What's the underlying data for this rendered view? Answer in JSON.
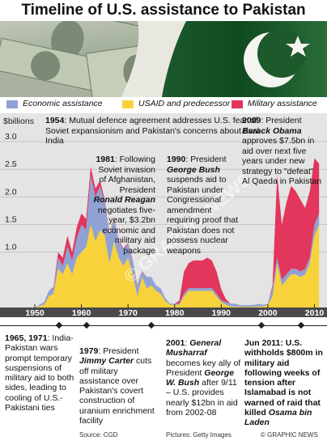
{
  "title": "Timeline of U.S. assistance to Pakistan",
  "legend": [
    {
      "label": "Economic assistance",
      "color": "#8fa2d3"
    },
    {
      "label": "USAID and predecessor",
      "color": "#f7d23a"
    },
    {
      "label": "Military assistance",
      "color": "#e2365c"
    }
  ],
  "chart_data": {
    "type": "area",
    "ylabel": "$billions",
    "ylim": [
      0,
      3.0
    ],
    "yticks": [
      "3.0",
      "2.5",
      "2.0",
      "1.5",
      "1.0"
    ],
    "xlim": [
      1946,
      2012
    ],
    "xticks": [
      "1950",
      "1960",
      "1970",
      "1980",
      "1990",
      "2000",
      "2010"
    ],
    "series": [
      {
        "name": "USAID and predecessor",
        "points": [
          [
            1948,
            0
          ],
          [
            1950,
            0
          ],
          [
            1952,
            0.05
          ],
          [
            1953,
            0.2
          ],
          [
            1954,
            0.25
          ],
          [
            1955,
            0.7
          ],
          [
            1956,
            0.6
          ],
          [
            1957,
            0.8
          ],
          [
            1958,
            0.6
          ],
          [
            1959,
            0.9
          ],
          [
            1960,
            1.0
          ],
          [
            1961,
            1.1
          ],
          [
            1962,
            1.5
          ],
          [
            1963,
            1.2
          ],
          [
            1964,
            1.4
          ],
          [
            1965,
            1.3
          ],
          [
            1966,
            0.8
          ],
          [
            1967,
            1.2
          ],
          [
            1968,
            0.9
          ],
          [
            1969,
            0.75
          ],
          [
            1970,
            0.9
          ],
          [
            1971,
            0.6
          ],
          [
            1972,
            0.2
          ],
          [
            1973,
            0.55
          ],
          [
            1974,
            0.35
          ],
          [
            1975,
            0.4
          ],
          [
            1976,
            0.3
          ],
          [
            1977,
            0.25
          ],
          [
            1978,
            0.12
          ],
          [
            1979,
            0.05
          ],
          [
            1980,
            0.05
          ],
          [
            1981,
            0.05
          ],
          [
            1982,
            0.2
          ],
          [
            1983,
            0.3
          ],
          [
            1984,
            0.3
          ],
          [
            1985,
            0.3
          ],
          [
            1986,
            0.3
          ],
          [
            1987,
            0.3
          ],
          [
            1988,
            0.3
          ],
          [
            1989,
            0.2
          ],
          [
            1990,
            0.1
          ],
          [
            1991,
            0.05
          ],
          [
            1992,
            0.02
          ],
          [
            1995,
            0.01
          ],
          [
            1999,
            0.02
          ],
          [
            2000,
            0.05
          ],
          [
            2001,
            0.2
          ],
          [
            2002,
            0.8
          ],
          [
            2003,
            0.4
          ],
          [
            2004,
            0.5
          ],
          [
            2005,
            0.6
          ],
          [
            2006,
            0.6
          ],
          [
            2007,
            0.55
          ],
          [
            2008,
            0.6
          ],
          [
            2009,
            0.8
          ],
          [
            2010,
            1.3
          ],
          [
            2011,
            1.5
          ]
        ]
      },
      {
        "name": "Economic assistance",
        "points": [
          [
            1948,
            0
          ],
          [
            1950,
            0
          ],
          [
            1952,
            0.05
          ],
          [
            1953,
            0.1
          ],
          [
            1954,
            0.1
          ],
          [
            1955,
            0.2
          ],
          [
            1956,
            0.15
          ],
          [
            1957,
            0.3
          ],
          [
            1958,
            0.25
          ],
          [
            1959,
            0.35
          ],
          [
            1960,
            0.5
          ],
          [
            1961,
            0.3
          ],
          [
            1962,
            0.9
          ],
          [
            1963,
            0.8
          ],
          [
            1964,
            0.8
          ],
          [
            1965,
            0.6
          ],
          [
            1966,
            0.5
          ],
          [
            1967,
            0.4
          ],
          [
            1968,
            0.3
          ],
          [
            1969,
            0.3
          ],
          [
            1970,
            0.25
          ],
          [
            1971,
            0.25
          ],
          [
            1972,
            0.2
          ],
          [
            1973,
            0.1
          ],
          [
            1974,
            0.2
          ],
          [
            1975,
            0.15
          ],
          [
            1976,
            0.1
          ],
          [
            1977,
            0.1
          ],
          [
            1978,
            0.05
          ],
          [
            1979,
            0.02
          ],
          [
            1980,
            0.02
          ],
          [
            1981,
            0.02
          ],
          [
            1982,
            0.05
          ],
          [
            1983,
            0.05
          ],
          [
            1984,
            0.05
          ],
          [
            1985,
            0.05
          ],
          [
            1986,
            0.05
          ],
          [
            1987,
            0.05
          ],
          [
            1988,
            0.05
          ],
          [
            1989,
            0.05
          ],
          [
            1990,
            0.03
          ],
          [
            1991,
            0.05
          ],
          [
            1992,
            0.05
          ],
          [
            1993,
            0.05
          ],
          [
            1994,
            0.03
          ],
          [
            1995,
            0.03
          ],
          [
            1996,
            0.03
          ],
          [
            1997,
            0.03
          ],
          [
            1998,
            0.05
          ],
          [
            1999,
            0.03
          ],
          [
            2000,
            0.02
          ],
          [
            2001,
            0.15
          ],
          [
            2002,
            0.1
          ],
          [
            2003,
            0.1
          ],
          [
            2004,
            0.1
          ],
          [
            2005,
            0.1
          ],
          [
            2006,
            0.1
          ],
          [
            2007,
            0.1
          ],
          [
            2008,
            0.1
          ],
          [
            2009,
            0.1
          ],
          [
            2010,
            0.2
          ],
          [
            2011,
            0.2
          ]
        ]
      },
      {
        "name": "Military assistance",
        "points": [
          [
            1948,
            0
          ],
          [
            1953,
            0
          ],
          [
            1954,
            0.02
          ],
          [
            1955,
            0.1
          ],
          [
            1956,
            0.15
          ],
          [
            1957,
            0.2
          ],
          [
            1958,
            0.15
          ],
          [
            1959,
            0.2
          ],
          [
            1960,
            0.2
          ],
          [
            1961,
            0.2
          ],
          [
            1962,
            0.15
          ],
          [
            1963,
            0.15
          ],
          [
            1964,
            0.1
          ],
          [
            1965,
            0.05
          ],
          [
            1966,
            0.02
          ],
          [
            1970,
            0.02
          ],
          [
            1975,
            0.0
          ],
          [
            1980,
            0
          ],
          [
            1981,
            0.05
          ],
          [
            1982,
            0.4
          ],
          [
            1983,
            0.45
          ],
          [
            1984,
            0.5
          ],
          [
            1985,
            0.5
          ],
          [
            1986,
            0.5
          ],
          [
            1987,
            0.55
          ],
          [
            1988,
            0.5
          ],
          [
            1989,
            0.4
          ],
          [
            1990,
            0.2
          ],
          [
            1991,
            0.05
          ],
          [
            1992,
            0
          ],
          [
            2000,
            0
          ],
          [
            2001,
            0.05
          ],
          [
            2002,
            1.5
          ],
          [
            2003,
            1.0
          ],
          [
            2004,
            1.3
          ],
          [
            2005,
            1.5
          ],
          [
            2006,
            1.4
          ],
          [
            2007,
            1.3
          ],
          [
            2008,
            1.1
          ],
          [
            2009,
            1.2
          ],
          [
            2010,
            1.2
          ],
          [
            2011,
            0.9
          ]
        ]
      }
    ]
  },
  "annotations": [
    {
      "year": "1954",
      "text": ": Mutual defence agreement addresses U.S. fear of Soviet expansionism and Pakistan's concerns about rival India"
    },
    {
      "year": "1981",
      "pre": ": Following Soviet invasion of Afghanistan, President",
      "name": "Ronald Reagan",
      "post": "negotiates five-year, $3.2bn economic and military aid package"
    },
    {
      "year": "1990",
      "pre": ": President",
      "name": "George Bush",
      "post": "suspends aid to Pakistan under Congressional amendment requiring proof that Pakistan does not possess nuclear weapons"
    },
    {
      "year": "2009",
      "pre": ": President",
      "name": "Barack Obama",
      "post": "approves $7.5bn in aid over next five years under new strategy to \"defeat\" Al Qaeda in Pakistan"
    }
  ],
  "bottom_notes": [
    {
      "year": "1965, 1971",
      "text": ": India-Pakistan wars prompt temporary suspensions of military aid to both sides, leading to cooling of U.S.-Pakistani ties"
    },
    {
      "year": "1979",
      "pre": ": President",
      "name": "Jimmy Carter",
      "post": "cuts off military assistance over Pakistan's covert construction of uranium enrichment facility"
    },
    {
      "year": "2001",
      "pre": ":",
      "name": "General Musharraf",
      "post": "becomes key ally of President",
      "name2": "George W. Bush",
      "post2": "after 9/11 – U.S. provides nearly $12bn in aid from 2002-08"
    },
    {
      "year": "Jun 2011",
      "text": ": U.S. withholds $800m in military aid following weeks of tension after Islamabad is not warned of raid that killed",
      "name": "Osama bin Laden"
    }
  ],
  "footer": {
    "source": "Source: CGD",
    "pictures": "Pictures: Getty Images",
    "credit": "© GRAPHIC NEWS",
    "watermark": "© GRAPHIC NEWS"
  }
}
